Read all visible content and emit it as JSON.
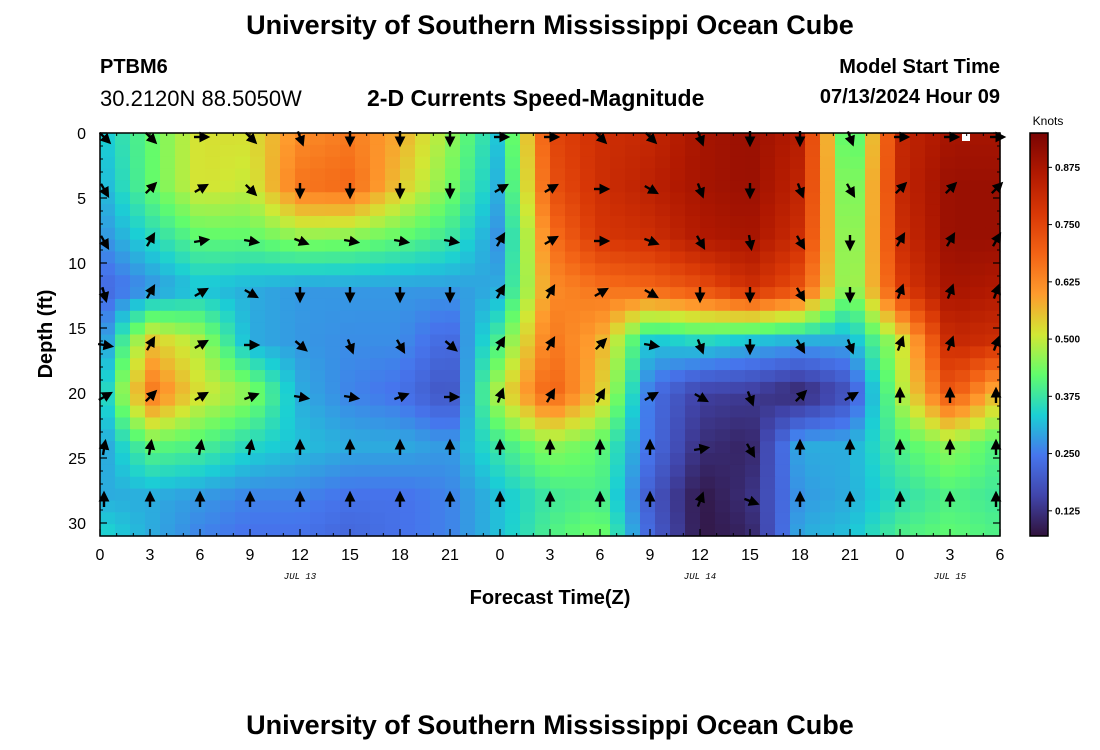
{
  "header": {
    "title": "University of Southern Mississippi Ocean Cube",
    "station_id": "PTBM6",
    "station_coords": "30.2120N  88.5050W",
    "chart_heading": "2-D Currents Speed-Magnitude",
    "model_start_label": "Model Start Time",
    "model_start_value": "07/13/2024 Hour 09"
  },
  "footer": {
    "title": "University of Southern Mississippi Ocean Cube"
  },
  "chart_data": {
    "type": "heatmap",
    "title": "2-D Currents Speed-Magnitude",
    "xlabel": "Forecast Time(Z)",
    "ylabel": "Depth (ft)",
    "colorbar_label": "Knots",
    "colorbar_ticks": [
      "0.125",
      "0.250",
      "0.375",
      "0.500",
      "0.625",
      "0.750",
      "0.875"
    ],
    "colorbar_range": [
      0.07,
      0.95
    ],
    "x_tick_labels": [
      "0",
      "3",
      "6",
      "9",
      "12",
      "15",
      "18",
      "21",
      "0",
      "3",
      "6",
      "9",
      "12",
      "15",
      "18",
      "21",
      "0",
      "3",
      "6"
    ],
    "x_range_hours": [
      0,
      54
    ],
    "date_labels": [
      {
        "label": "JUL 13",
        "hour": 12
      },
      {
        "label": "JUL 14",
        "hour": 36
      },
      {
        "label": "JUL 15",
        "hour": 51
      }
    ],
    "y_tick_labels": [
      "0",
      "5",
      "10",
      "15",
      "20",
      "25",
      "30"
    ],
    "y_range_ft": [
      0,
      31
    ],
    "y_inverted": true,
    "depths_ft": [
      0,
      4,
      8,
      12,
      16,
      20,
      24,
      28,
      31
    ],
    "hours": [
      0,
      3,
      6,
      9,
      12,
      15,
      18,
      21,
      24,
      27,
      30,
      33,
      36,
      39,
      42,
      45,
      48,
      51,
      54
    ],
    "speed_knots": [
      [
        0.32,
        0.42,
        0.52,
        0.52,
        0.62,
        0.65,
        0.58,
        0.46,
        0.32,
        0.74,
        0.8,
        0.82,
        0.88,
        0.9,
        0.85,
        0.35,
        0.82,
        0.88,
        0.88
      ],
      [
        0.3,
        0.42,
        0.52,
        0.5,
        0.66,
        0.68,
        0.55,
        0.44,
        0.3,
        0.72,
        0.8,
        0.84,
        0.88,
        0.9,
        0.83,
        0.38,
        0.82,
        0.9,
        0.9
      ],
      [
        0.27,
        0.35,
        0.42,
        0.42,
        0.46,
        0.45,
        0.42,
        0.38,
        0.27,
        0.66,
        0.78,
        0.8,
        0.86,
        0.88,
        0.8,
        0.4,
        0.8,
        0.9,
        0.9
      ],
      [
        0.22,
        0.27,
        0.32,
        0.3,
        0.28,
        0.28,
        0.28,
        0.28,
        0.3,
        0.62,
        0.66,
        0.68,
        0.72,
        0.8,
        0.72,
        0.42,
        0.76,
        0.88,
        0.86
      ],
      [
        0.25,
        0.55,
        0.48,
        0.3,
        0.28,
        0.27,
        0.27,
        0.22,
        0.4,
        0.66,
        0.58,
        0.32,
        0.35,
        0.32,
        0.3,
        0.3,
        0.5,
        0.82,
        0.8
      ],
      [
        0.3,
        0.66,
        0.52,
        0.46,
        0.3,
        0.26,
        0.24,
        0.18,
        0.5,
        0.7,
        0.55,
        0.24,
        0.15,
        0.14,
        0.1,
        0.18,
        0.48,
        0.72,
        0.55
      ],
      [
        0.28,
        0.42,
        0.4,
        0.35,
        0.32,
        0.3,
        0.3,
        0.28,
        0.38,
        0.46,
        0.42,
        0.24,
        0.12,
        0.1,
        0.3,
        0.3,
        0.4,
        0.46,
        0.4
      ],
      [
        0.3,
        0.3,
        0.28,
        0.26,
        0.26,
        0.24,
        0.24,
        0.26,
        0.32,
        0.38,
        0.4,
        0.2,
        0.08,
        0.12,
        0.28,
        0.3,
        0.36,
        0.4,
        0.38
      ],
      [
        0.35,
        0.3,
        0.26,
        0.24,
        0.24,
        0.22,
        0.24,
        0.26,
        0.32,
        0.4,
        0.44,
        0.22,
        0.08,
        0.1,
        0.3,
        0.32,
        0.4,
        0.42,
        0.4
      ]
    ],
    "vector_depths_ft": [
      0,
      4,
      8,
      12,
      16,
      20,
      24,
      28
    ],
    "vector_hours": [
      0,
      3,
      6,
      9,
      12,
      15,
      18,
      21,
      24,
      27,
      30,
      33,
      36,
      39,
      42,
      45,
      48,
      51,
      54
    ],
    "vector_directions_deg": [
      [
        135,
        135,
        90,
        135,
        160,
        180,
        180,
        180,
        90,
        90,
        135,
        135,
        160,
        180,
        180,
        160,
        90,
        90,
        90
      ],
      [
        150,
        45,
        60,
        135,
        180,
        180,
        180,
        180,
        60,
        60,
        90,
        120,
        160,
        180,
        160,
        150,
        45,
        45,
        45
      ],
      [
        150,
        30,
        80,
        100,
        110,
        100,
        100,
        100,
        30,
        60,
        90,
        110,
        150,
        170,
        150,
        180,
        30,
        30,
        30
      ],
      [
        165,
        30,
        60,
        120,
        180,
        180,
        180,
        180,
        30,
        30,
        60,
        120,
        180,
        180,
        150,
        180,
        20,
        20,
        20
      ],
      [
        100,
        30,
        60,
        90,
        130,
        160,
        150,
        130,
        30,
        30,
        45,
        100,
        160,
        180,
        150,
        160,
        20,
        20,
        20
      ],
      [
        60,
        45,
        60,
        70,
        100,
        100,
        70,
        90,
        20,
        30,
        30,
        60,
        120,
        160,
        45,
        60,
        0,
        0,
        0
      ],
      [
        10,
        10,
        10,
        10,
        0,
        0,
        0,
        0,
        0,
        0,
        0,
        0,
        80,
        150,
        0,
        0,
        0,
        0,
        0
      ],
      [
        0,
        0,
        0,
        0,
        0,
        0,
        0,
        0,
        0,
        0,
        0,
        0,
        20,
        110,
        0,
        0,
        0,
        0,
        0
      ]
    ]
  }
}
